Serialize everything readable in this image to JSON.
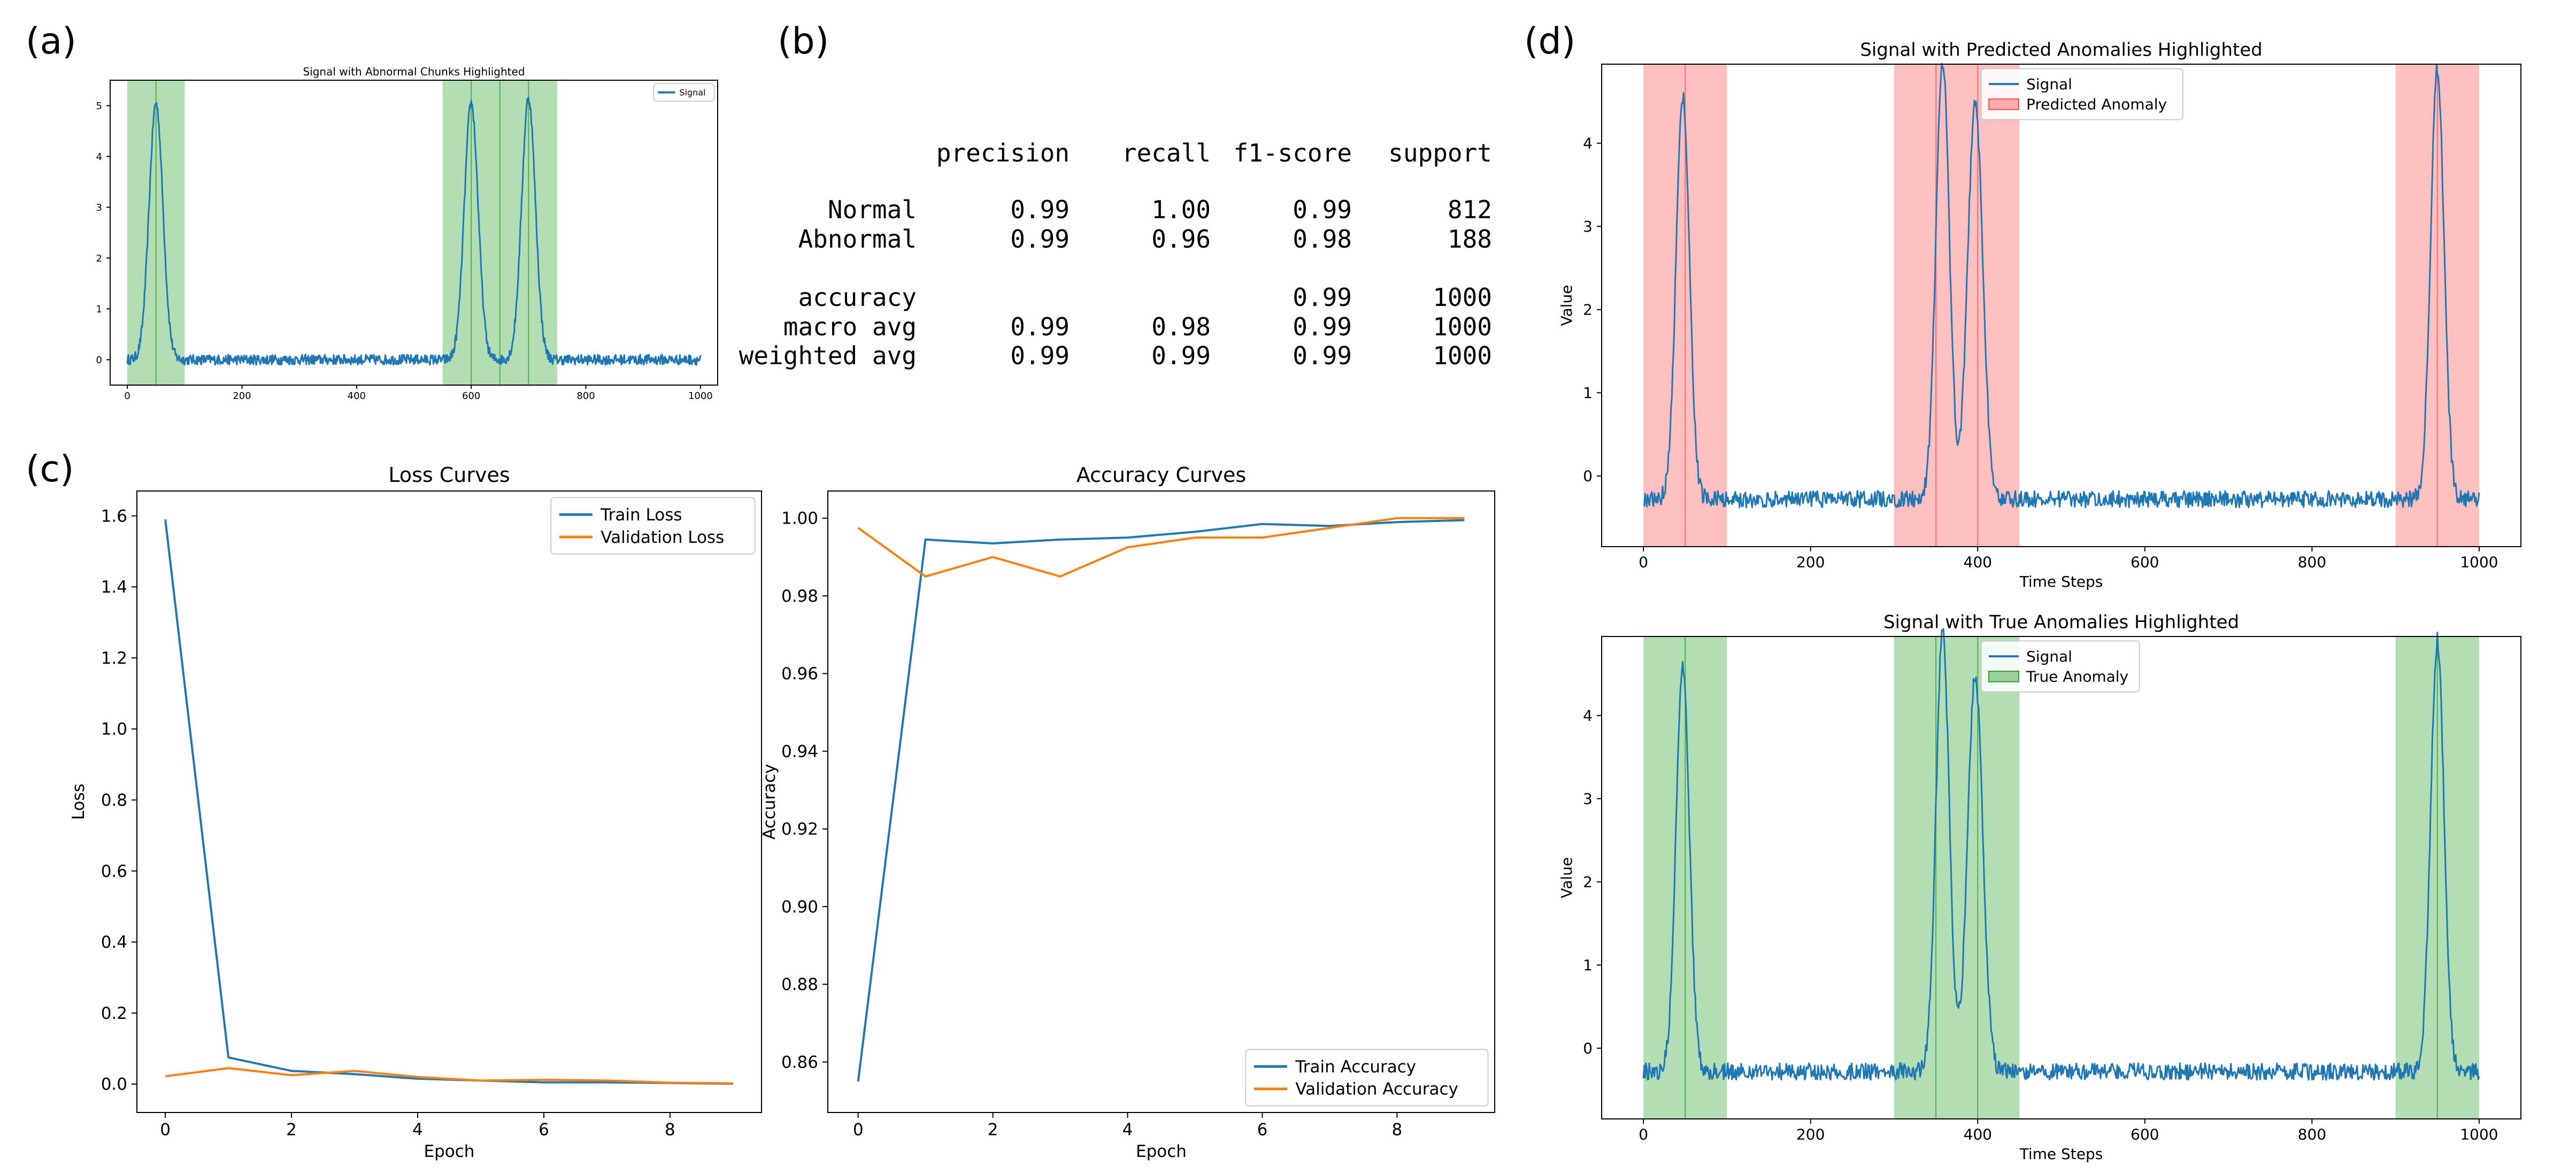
{
  "panel_labels": {
    "a": "(a)",
    "b": "(b)",
    "c": "(c)",
    "d": "(d)"
  },
  "colors": {
    "signal": "#1f77b4",
    "validation": "#ff7f0e",
    "true_anomaly": "#2ca02c",
    "predicted_anomaly": "#ff4d4d"
  },
  "report": {
    "header": [
      "",
      "precision",
      "recall",
      "f1-score",
      "support"
    ],
    "rows": [
      [
        "Normal",
        "0.99",
        "1.00",
        "0.99",
        "812"
      ],
      [
        "Abnormal",
        "0.99",
        "0.96",
        "0.98",
        "188"
      ],
      [
        "accuracy",
        "",
        "",
        "0.99",
        "1000"
      ],
      [
        "macro avg",
        "0.99",
        "0.98",
        "0.99",
        "1000"
      ],
      [
        "weighted avg",
        "0.99",
        "0.99",
        "0.99",
        "1000"
      ]
    ]
  },
  "chart_data": [
    {
      "id": "a",
      "type": "line",
      "title": "Signal with Abnormal Chunks Highlighted",
      "xlabel": "",
      "ylabel": "",
      "xlim": [
        -30,
        1030
      ],
      "ylim": [
        -0.5,
        5.5
      ],
      "xticks": [
        0,
        200,
        400,
        600,
        800,
        1000
      ],
      "yticks": [
        0,
        1,
        2,
        3,
        4,
        5
      ],
      "grid": false,
      "legend": "top-right",
      "series": [
        {
          "name": "Signal",
          "color": "#1f77b4",
          "baseline": 0.0,
          "noise": 0.1,
          "peaks": [
            [
              50,
              5.05,
              12
            ],
            [
              600,
              5.05,
              12
            ],
            [
              700,
              5.15,
              12
            ]
          ]
        }
      ],
      "spans": [
        {
          "from": 0,
          "to": 100
        },
        {
          "from": 550,
          "to": 750
        }
      ],
      "span_color": "#2ca02c",
      "span_lines": [
        50,
        600,
        650,
        700
      ]
    },
    {
      "id": "loss",
      "type": "line",
      "title": "Loss Curves",
      "xlabel": "Epoch",
      "ylabel": "Loss",
      "xlim": [
        -0.45,
        9.45
      ],
      "ylim": [
        -0.08,
        1.67
      ],
      "xticks": [
        0,
        2,
        4,
        6,
        8
      ],
      "yticks": [
        0.0,
        0.2,
        0.4,
        0.6,
        0.8,
        1.0,
        1.2,
        1.4,
        1.6
      ],
      "ytick_labels": [
        "0.0",
        "0.2",
        "0.4",
        "0.6",
        "0.8",
        "1.0",
        "1.2",
        "1.4",
        "1.6"
      ],
      "grid": false,
      "legend": "top-right",
      "x": [
        0,
        1,
        2,
        3,
        4,
        5,
        6,
        7,
        8,
        9
      ],
      "series": [
        {
          "name": "Train Loss",
          "color": "#1f77b4",
          "values": [
            1.59,
            0.075,
            0.037,
            0.028,
            0.015,
            0.01,
            0.005,
            0.005,
            0.003,
            0.001
          ]
        },
        {
          "name": "Validation Loss",
          "color": "#ff7f0e",
          "values": [
            0.022,
            0.045,
            0.025,
            0.037,
            0.02,
            0.01,
            0.012,
            0.01,
            0.004,
            0.002
          ]
        }
      ]
    },
    {
      "id": "acc",
      "type": "line",
      "title": "Accuracy Curves",
      "xlabel": "Epoch",
      "ylabel": "Accuracy",
      "xlim": [
        -0.45,
        9.45
      ],
      "ylim": [
        0.847,
        1.007
      ],
      "xticks": [
        0,
        2,
        4,
        6,
        8
      ],
      "yticks": [
        0.86,
        0.88,
        0.9,
        0.92,
        0.94,
        0.96,
        0.98,
        1.0
      ],
      "ytick_labels": [
        "0.86",
        "0.88",
        "0.90",
        "0.92",
        "0.94",
        "0.96",
        "0.98",
        "1.00"
      ],
      "grid": false,
      "legend": "bottom-right",
      "x": [
        0,
        1,
        2,
        3,
        4,
        5,
        6,
        7,
        8,
        9
      ],
      "series": [
        {
          "name": "Train Accuracy",
          "color": "#1f77b4",
          "values": [
            0.855,
            0.9945,
            0.9935,
            0.9945,
            0.995,
            0.9965,
            0.9985,
            0.998,
            0.999,
            0.9995
          ]
        },
        {
          "name": "Validation Accuracy",
          "color": "#ff7f0e",
          "values": [
            0.9975,
            0.985,
            0.99,
            0.985,
            0.9925,
            0.995,
            0.995,
            0.9975,
            1.0,
            1.0
          ]
        }
      ]
    },
    {
      "id": "pred",
      "type": "line",
      "title": "Signal with Predicted Anomalies Highlighted",
      "xlabel": "Time Steps",
      "ylabel": "Value",
      "xlim": [
        -50,
        1050
      ],
      "ylim": [
        -0.85,
        4.95
      ],
      "xticks": [
        0,
        200,
        400,
        600,
        800,
        1000
      ],
      "yticks": [
        0,
        1,
        2,
        3,
        4
      ],
      "grid": false,
      "legend": "top-center",
      "series": [
        {
          "name": "Signal",
          "color": "#1f77b4",
          "baseline": -0.28,
          "noise": 0.1,
          "peaks": [
            [
              47,
              4.55,
              8
            ],
            [
              358,
              5.0,
              8
            ],
            [
              397,
              4.5,
              9
            ],
            [
              950,
              4.9,
              8
            ]
          ]
        }
      ],
      "spans": [
        {
          "from": 0,
          "to": 100,
          "name": "Predicted Anomaly"
        },
        {
          "from": 300,
          "to": 450
        },
        {
          "from": 900,
          "to": 1000
        }
      ],
      "span_color": "#ff4d4d",
      "span_lines": [
        50,
        350,
        400,
        950
      ]
    },
    {
      "id": "true",
      "type": "line",
      "title": "Signal with True Anomalies Highlighted",
      "xlabel": "Time Steps",
      "ylabel": "Value",
      "xlim": [
        -50,
        1050
      ],
      "ylim": [
        -0.85,
        4.95
      ],
      "xticks": [
        0,
        200,
        400,
        600,
        800,
        1000
      ],
      "yticks": [
        0,
        1,
        2,
        3,
        4
      ],
      "grid": false,
      "legend": "top-center",
      "series": [
        {
          "name": "Signal",
          "color": "#1f77b4",
          "baseline": -0.28,
          "noise": 0.1,
          "peaks": [
            [
              47,
              4.55,
              8
            ],
            [
              358,
              5.0,
              8
            ],
            [
              397,
              4.5,
              9
            ],
            [
              950,
              4.9,
              8
            ]
          ]
        }
      ],
      "spans": [
        {
          "from": 0,
          "to": 100,
          "name": "True Anomaly"
        },
        {
          "from": 300,
          "to": 450
        },
        {
          "from": 900,
          "to": 1000
        }
      ],
      "span_color": "#2ca02c",
      "span_lines": [
        50,
        350,
        400,
        950
      ]
    }
  ]
}
